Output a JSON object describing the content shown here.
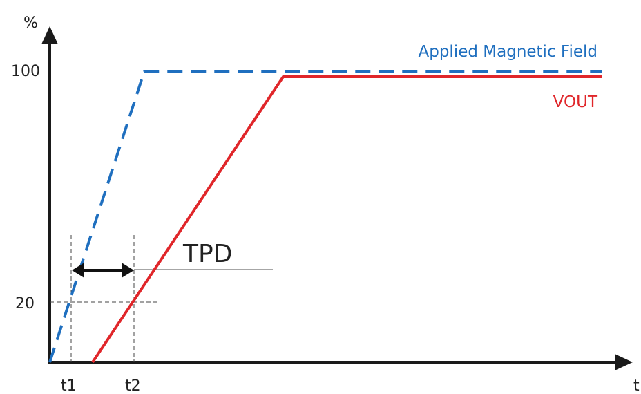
{
  "diagram": {
    "y_unit": "%",
    "x_unit": "t",
    "y_tick_100": "100",
    "y_tick_20": "20",
    "x_tick_t1": "t1",
    "x_tick_t2": "t2",
    "tpd_label": "TPD",
    "applied_field_label": "Applied Magnetic Field",
    "vout_label": "VOUT"
  },
  "colors": {
    "axis": "#1a1a1a",
    "applied_field": "#1f6fbf",
    "vout": "#e0262a",
    "guide": "#444444",
    "text": "#222222"
  }
}
